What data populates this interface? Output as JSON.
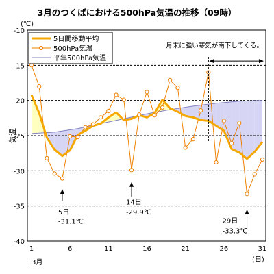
{
  "chart_data": {
    "type": "line",
    "title": "3月のつくばにおける500hPa気温の推移（09時）",
    "ylabel": "気温",
    "yunit": "(℃)",
    "xunit": "(日)",
    "month_label": "3月",
    "ylim": [
      -40,
      -10
    ],
    "xlim": [
      1,
      31
    ],
    "yticks": [
      -10,
      -15,
      -20,
      -25,
      -30,
      -35,
      -40
    ],
    "xticks": [
      1,
      6,
      11,
      16,
      21,
      26,
      31
    ],
    "grid": "horizontal-dashed",
    "legend_position": "top-left",
    "colors": {
      "moving_avg": "#f5a800",
      "daily": "#f08000",
      "normal": "#8080c0",
      "warm_fill": "#ffffc0",
      "cold_fill": "#d6d6f4"
    },
    "series": [
      {
        "name": "5日間移動平均",
        "x": [
          1,
          2,
          3,
          4,
          5,
          6,
          7,
          8,
          9,
          10,
          11,
          12,
          13,
          14,
          15,
          16,
          17,
          18,
          19,
          20,
          21,
          22,
          23,
          24,
          25,
          26,
          27,
          28,
          29,
          30,
          31
        ],
        "values": [
          -19.2,
          -21.8,
          -25.3,
          -27.0,
          -27.9,
          -27.1,
          -24.9,
          -24.3,
          -23.6,
          -23.3,
          -22.4,
          -21.7,
          -22.8,
          -22.6,
          -22.1,
          -22.4,
          -21.8,
          -19.9,
          -21.1,
          -21.6,
          -22.2,
          -22.4,
          -22.8,
          -22.9,
          -23.6,
          -24.3,
          -26.9,
          -27.4,
          -28.3,
          -27.3,
          -25.9
        ]
      },
      {
        "name": "500hPa気温",
        "x": [
          1,
          2,
          3,
          4,
          5,
          6,
          7,
          8,
          9,
          10,
          11,
          12,
          13,
          14,
          15,
          16,
          17,
          18,
          19,
          20,
          21,
          22,
          23,
          24,
          25,
          26,
          27,
          28,
          29,
          30,
          31
        ],
        "values": [
          -15.0,
          -18.0,
          -28.2,
          -30.4,
          -31.1,
          -25.1,
          -25.2,
          -23.8,
          -23.4,
          -22.4,
          -21.5,
          -19.2,
          -19.9,
          -29.9,
          -22.0,
          -18.8,
          -22.1,
          -21.0,
          -17.1,
          -18.2,
          -26.7,
          -25.5,
          -21.4,
          -16.0,
          -28.8,
          -22.9,
          -26.1,
          -23.2,
          -33.3,
          -30.5,
          -28.4
        ]
      },
      {
        "name": "平年500hPa気温",
        "x": [
          1,
          4,
          7,
          10,
          13,
          16,
          19,
          22,
          25,
          28,
          31
        ],
        "values": [
          -24.7,
          -24.5,
          -24.0,
          -23.3,
          -22.6,
          -21.9,
          -21.3,
          -20.8,
          -20.4,
          -20.1,
          -20.0
        ]
      }
    ],
    "annotations": [
      {
        "day": 5,
        "label": "5日",
        "value_label": "-31.1℃"
      },
      {
        "day": 14,
        "label": "14日",
        "value_label": "-29.9℃"
      },
      {
        "day": 29,
        "label": "29日",
        "value_label": "-33.3℃"
      }
    ],
    "note": {
      "start_day": 24,
      "text": "月末に強い寒気が南下してくる。"
    }
  }
}
